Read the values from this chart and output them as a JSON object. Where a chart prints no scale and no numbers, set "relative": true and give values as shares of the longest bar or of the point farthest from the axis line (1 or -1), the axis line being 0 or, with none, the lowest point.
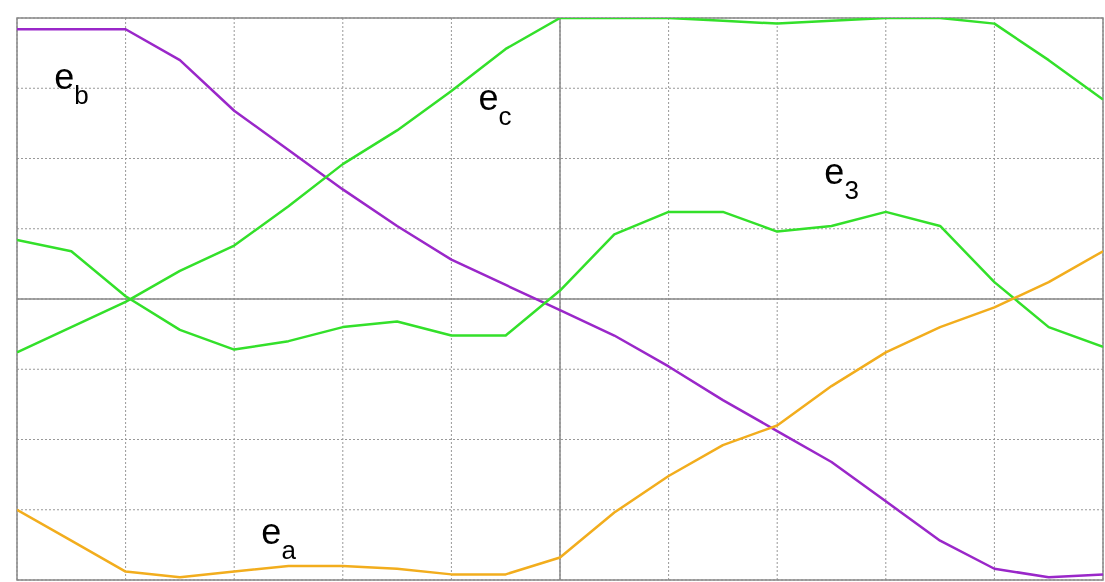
{
  "chart_data": {
    "type": "line",
    "relative": true,
    "grid": true,
    "marker": "none",
    "line_style": "solid",
    "categories": [
      null,
      null,
      null,
      null,
      null,
      null,
      null,
      null,
      null,
      null,
      null,
      null,
      null,
      null,
      null,
      null,
      null,
      null,
      null,
      null,
      null
    ],
    "series": [
      {
        "name": "e$_{b}$",
        "color": "#9a27c9",
        "values": [
          0.96,
          0.96,
          0.96,
          0.85,
          0.67,
          0.53,
          0.39,
          0.26,
          0.14,
          0.05,
          -0.04,
          -0.13,
          -0.24,
          -0.36,
          -0.47,
          -0.58,
          -0.72,
          -0.86,
          -0.96,
          -0.99,
          -0.98
        ]
      },
      {
        "name": "e$_{c}$",
        "color": "#33e02a",
        "values": [
          -0.19,
          -0.1,
          -0.01,
          0.1,
          0.19,
          0.33,
          0.48,
          0.6,
          0.74,
          0.89,
          1.0,
          1.0,
          1.0,
          0.99,
          0.98,
          0.99,
          1.0,
          1.0,
          0.98,
          0.85,
          0.71
        ]
      },
      {
        "name": "e$_{3}$",
        "color": "#33e02a",
        "values": [
          0.21,
          0.17,
          0.01,
          -0.11,
          -0.18,
          -0.15,
          -0.1,
          -0.08,
          -0.13,
          -0.13,
          0.03,
          0.23,
          0.31,
          0.31,
          0.24,
          0.26,
          0.31,
          0.26,
          0.06,
          -0.1,
          -0.17
        ]
      },
      {
        "name": "e$_{a}$",
        "color": "#f2ad1d",
        "values": [
          -0.75,
          -0.86,
          -0.97,
          -0.99,
          -0.97,
          -0.95,
          -0.95,
          -0.96,
          -0.98,
          -0.98,
          -0.92,
          -0.76,
          -0.63,
          -0.52,
          -0.45,
          -0.31,
          -0.19,
          -0.1,
          -0.03,
          0.06,
          0.17
        ]
      }
    ]
  }
}
